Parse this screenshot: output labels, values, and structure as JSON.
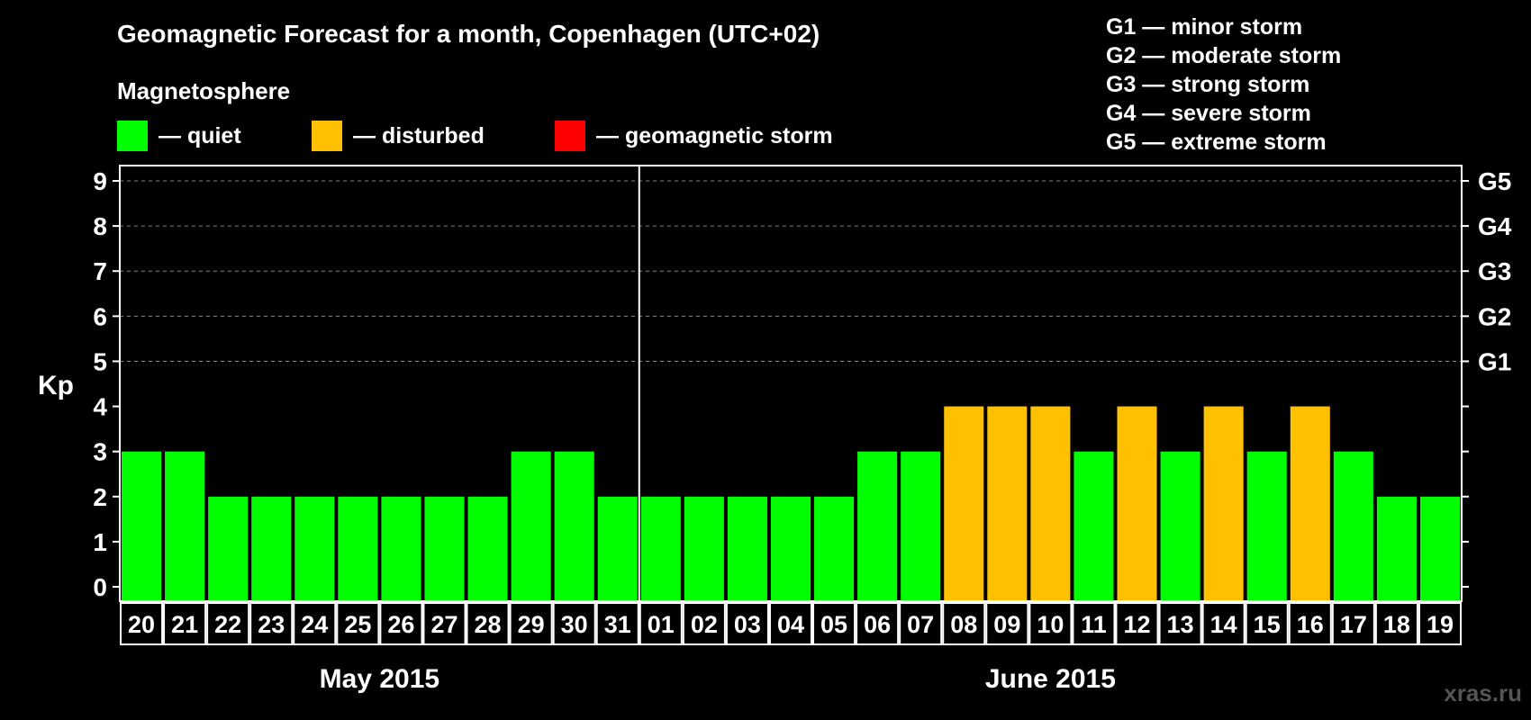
{
  "title": "Geomagnetic Forecast for a month, Copenhagen (UTC+02)",
  "magnetosphere_label": "Magnetosphere",
  "legend": [
    {
      "label": "— quiet",
      "color": "#00ff00"
    },
    {
      "label": "— disturbed",
      "color": "#ffc000"
    },
    {
      "label": "— geomagnetic storm",
      "color": "#ff0000"
    }
  ],
  "storm_scale": [
    "G1 — minor storm",
    "G2 — moderate storm",
    "G3 — strong storm",
    "G4 — severe storm",
    "G5 — extreme storm"
  ],
  "watermark": "xras.ru",
  "chart_data": {
    "type": "bar",
    "ylabel": "Kp",
    "ylim": [
      0,
      9
    ],
    "y_ticks": [
      0,
      1,
      2,
      3,
      4,
      5,
      6,
      7,
      8,
      9
    ],
    "right_ticks": [
      {
        "kp": 5,
        "label": "G1"
      },
      {
        "kp": 6,
        "label": "G2"
      },
      {
        "kp": 7,
        "label": "G3"
      },
      {
        "kp": 8,
        "label": "G4"
      },
      {
        "kp": 9,
        "label": "G5"
      }
    ],
    "grid": "dashed horizontal at Kp 5-9",
    "categories": [
      "20",
      "21",
      "22",
      "23",
      "24",
      "25",
      "26",
      "27",
      "28",
      "29",
      "30",
      "31",
      "01",
      "02",
      "03",
      "04",
      "05",
      "06",
      "07",
      "08",
      "09",
      "10",
      "11",
      "12",
      "13",
      "14",
      "15",
      "16",
      "17",
      "18",
      "19"
    ],
    "values": [
      3,
      3,
      2,
      2,
      2,
      2,
      2,
      2,
      2,
      3,
      3,
      2,
      2,
      2,
      2,
      2,
      2,
      3,
      3,
      4,
      4,
      4,
      3,
      4,
      3,
      4,
      3,
      4,
      3,
      2,
      2
    ],
    "status": [
      "quiet",
      "quiet",
      "quiet",
      "quiet",
      "quiet",
      "quiet",
      "quiet",
      "quiet",
      "quiet",
      "quiet",
      "quiet",
      "quiet",
      "quiet",
      "quiet",
      "quiet",
      "quiet",
      "quiet",
      "quiet",
      "quiet",
      "disturbed",
      "disturbed",
      "disturbed",
      "quiet",
      "disturbed",
      "quiet",
      "disturbed",
      "quiet",
      "disturbed",
      "quiet",
      "quiet",
      "quiet"
    ],
    "status_colors": {
      "quiet": "#00ff00",
      "disturbed": "#ffc000",
      "storm": "#ff0000"
    },
    "months": [
      {
        "label": "May 2015",
        "day_count": 12
      },
      {
        "label": "June 2015",
        "day_count": 19
      }
    ]
  }
}
